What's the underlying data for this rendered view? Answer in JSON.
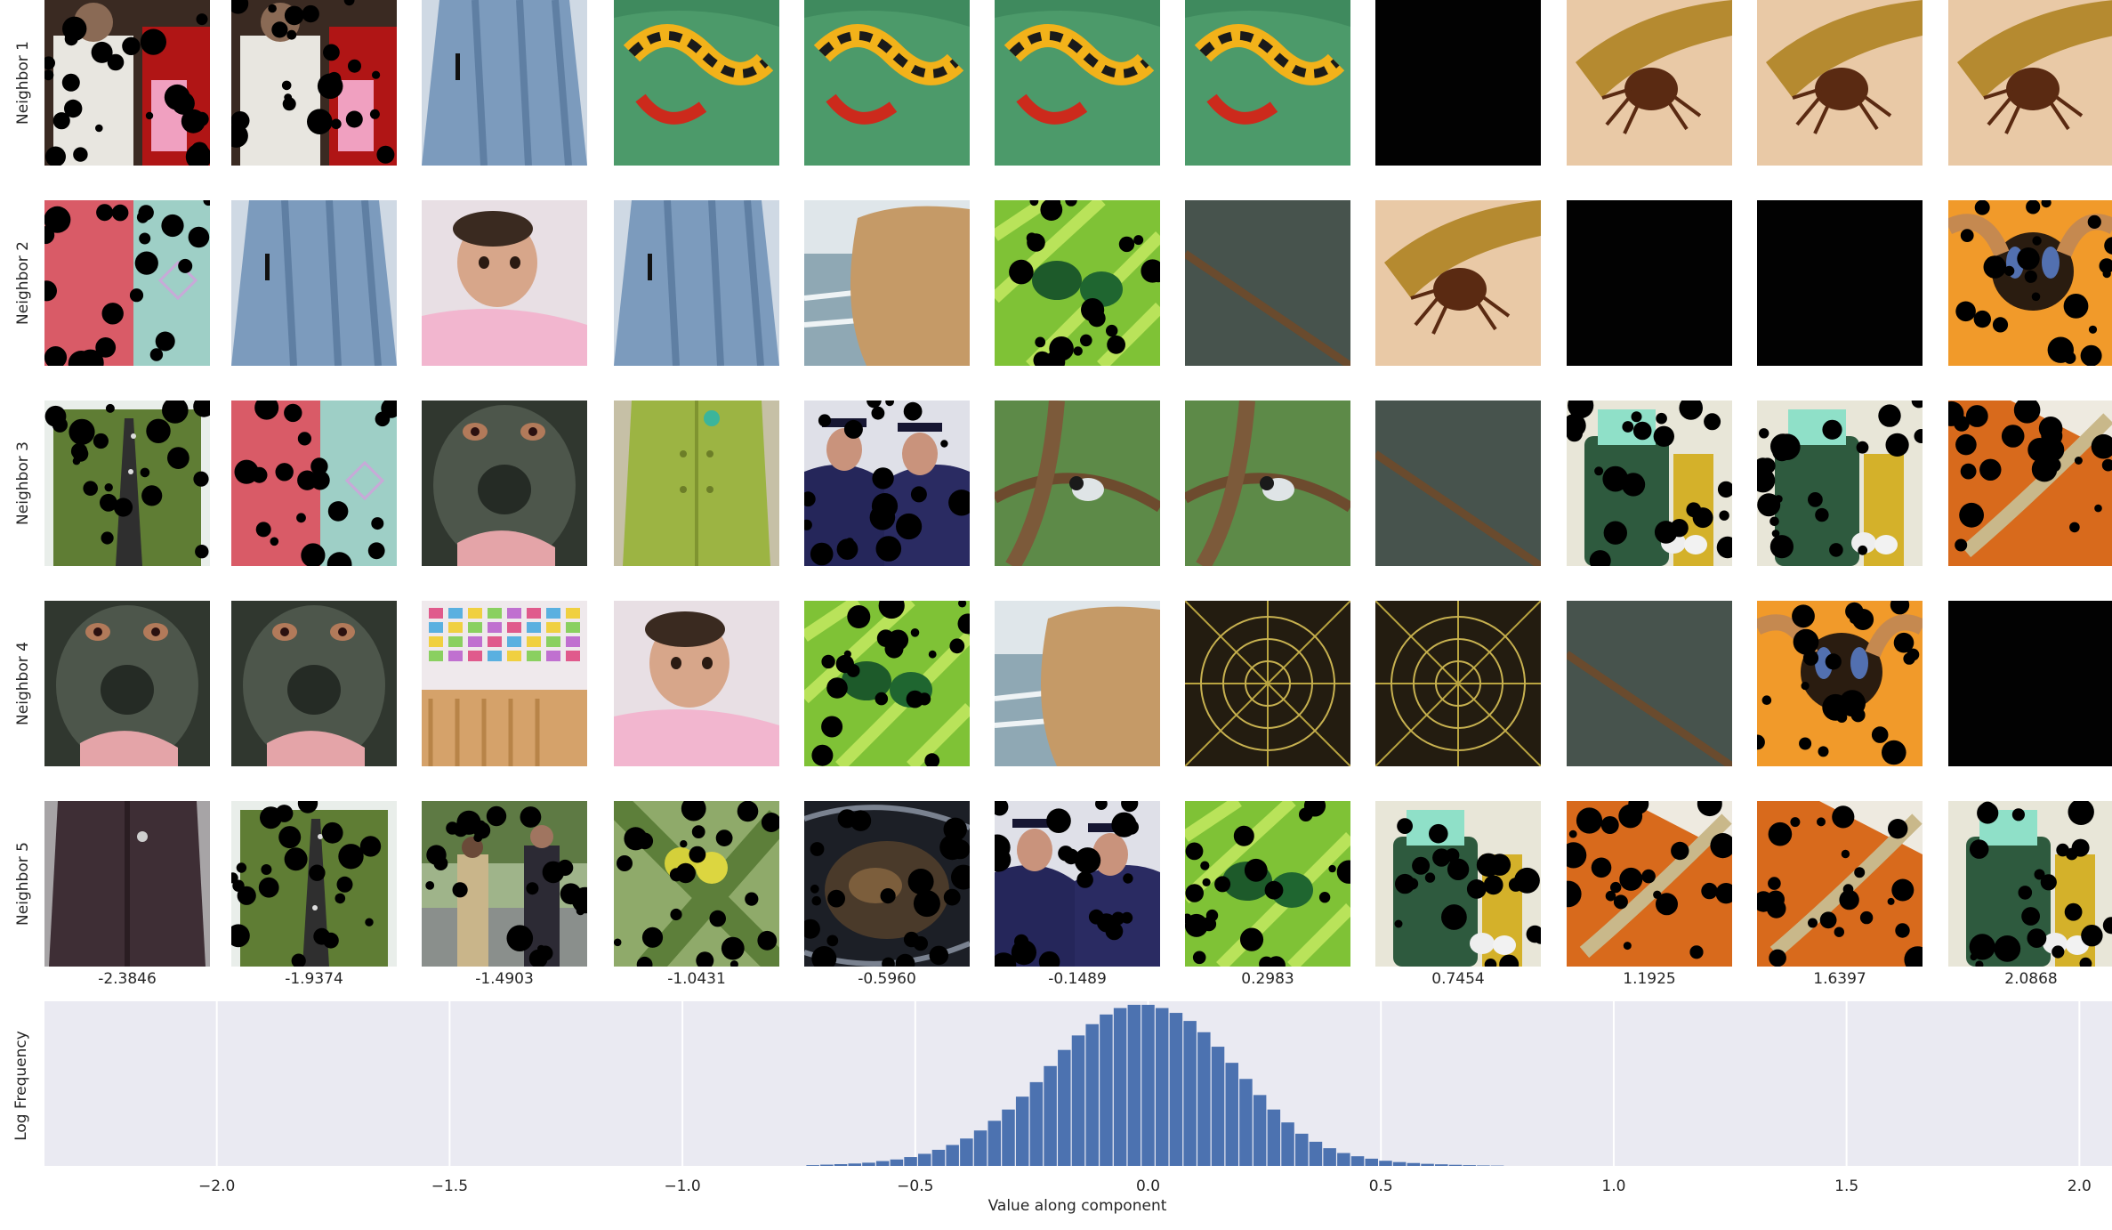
{
  "row_labels": [
    "Neighbor 1",
    "Neighbor 2",
    "Neighbor 3",
    "Neighbor 4",
    "Neighbor 5"
  ],
  "column_values": [
    "-2.3846",
    "-1.9374",
    "-1.4903",
    "-1.0431",
    "-0.5960",
    "-0.1489",
    "0.2983",
    "0.7454",
    "1.1925",
    "1.6397",
    "2.0868"
  ],
  "thumbnails": [
    [
      "masked-photo-person-in-robe",
      "masked-photo-person-in-robe",
      "photo-blue-skirt",
      "photo-salamander-on-leaf",
      "photo-salamander-on-leaf",
      "photo-salamander-on-leaf",
      "photo-salamander-on-leaf",
      "black-image",
      "photo-tick-on-finger",
      "photo-tick-on-finger",
      "photo-tick-on-finger"
    ],
    [
      "masked-photo-pink-shirt",
      "photo-blue-skirt",
      "photo-baby",
      "photo-blue-skirt",
      "photo-rock-and-sea",
      "masked-photo-green-beetle",
      "photo-stick-on-grey",
      "photo-tick-on-finger",
      "black-image",
      "black-image",
      "masked-photo-bee"
    ],
    [
      "masked-photo-green-cardigan",
      "masked-photo-pink-shirt",
      "photo-gorilla-face",
      "photo-green-coat",
      "masked-photo-graduates",
      "photo-bird-on-branch",
      "photo-bird-on-branch",
      "photo-stick-on-grey",
      "masked-photo-green-jar",
      "masked-photo-green-jar",
      "masked-photo-feather-on-orange"
    ],
    [
      "photo-gorilla-face",
      "photo-gorilla-face",
      "photo-nursery-wall",
      "photo-baby",
      "masked-photo-green-beetle",
      "photo-rock-and-sea",
      "photo-spider-web",
      "photo-spider-web",
      "photo-stick-on-grey",
      "masked-photo-bee",
      "black-image"
    ],
    [
      "photo-fur-coat",
      "masked-photo-green-cardigan",
      "masked-photo-people-outdoors",
      "masked-photo-fruit-on-branch",
      "masked-photo-black-bag",
      "masked-photo-graduates",
      "masked-photo-green-beetle",
      "masked-photo-green-jar",
      "masked-photo-feather-on-orange",
      "masked-photo-feather-on-orange",
      "masked-photo-green-jar"
    ]
  ],
  "chart_data": {
    "type": "bar",
    "xlabel": "Value along component",
    "ylabel": "Log Frequency",
    "xlim": [
      -2.37,
      2.07
    ],
    "x_ticks": [
      -2.0,
      -1.5,
      -1.0,
      -0.5,
      0.0,
      0.5,
      1.0,
      1.5,
      2.0
    ],
    "x_tick_labels": [
      "−2.0",
      "−1.5",
      "−1.0",
      "−0.5",
      "0.0",
      "0.5",
      "1.0",
      "1.5",
      "2.0"
    ],
    "grid": true,
    "bar_color": "#4c72b0",
    "background_color": "#eaeaf2",
    "bins": {
      "x": [
        -0.72,
        -0.69,
        -0.66,
        -0.63,
        -0.6,
        -0.57,
        -0.54,
        -0.51,
        -0.48,
        -0.45,
        -0.42,
        -0.39,
        -0.36,
        -0.33,
        -0.3,
        -0.27,
        -0.24,
        -0.21,
        -0.18,
        -0.15,
        -0.12,
        -0.09,
        -0.06,
        -0.03,
        0.0,
        0.03,
        0.06,
        0.09,
        0.12,
        0.15,
        0.18,
        0.21,
        0.24,
        0.27,
        0.3,
        0.33,
        0.36,
        0.39,
        0.42,
        0.45,
        0.48,
        0.51,
        0.54,
        0.57,
        0.6,
        0.63,
        0.66,
        0.69,
        0.72,
        0.75
      ],
      "y": [
        0.005,
        0.008,
        0.011,
        0.015,
        0.02,
        0.03,
        0.04,
        0.055,
        0.075,
        0.1,
        0.13,
        0.17,
        0.22,
        0.28,
        0.35,
        0.43,
        0.52,
        0.62,
        0.72,
        0.81,
        0.88,
        0.94,
        0.98,
        1.0,
        1.0,
        0.98,
        0.95,
        0.9,
        0.83,
        0.74,
        0.64,
        0.54,
        0.44,
        0.35,
        0.27,
        0.2,
        0.15,
        0.11,
        0.08,
        0.06,
        0.045,
        0.032,
        0.024,
        0.018,
        0.013,
        0.01,
        0.007,
        0.005,
        0.003,
        0.002
      ]
    }
  }
}
